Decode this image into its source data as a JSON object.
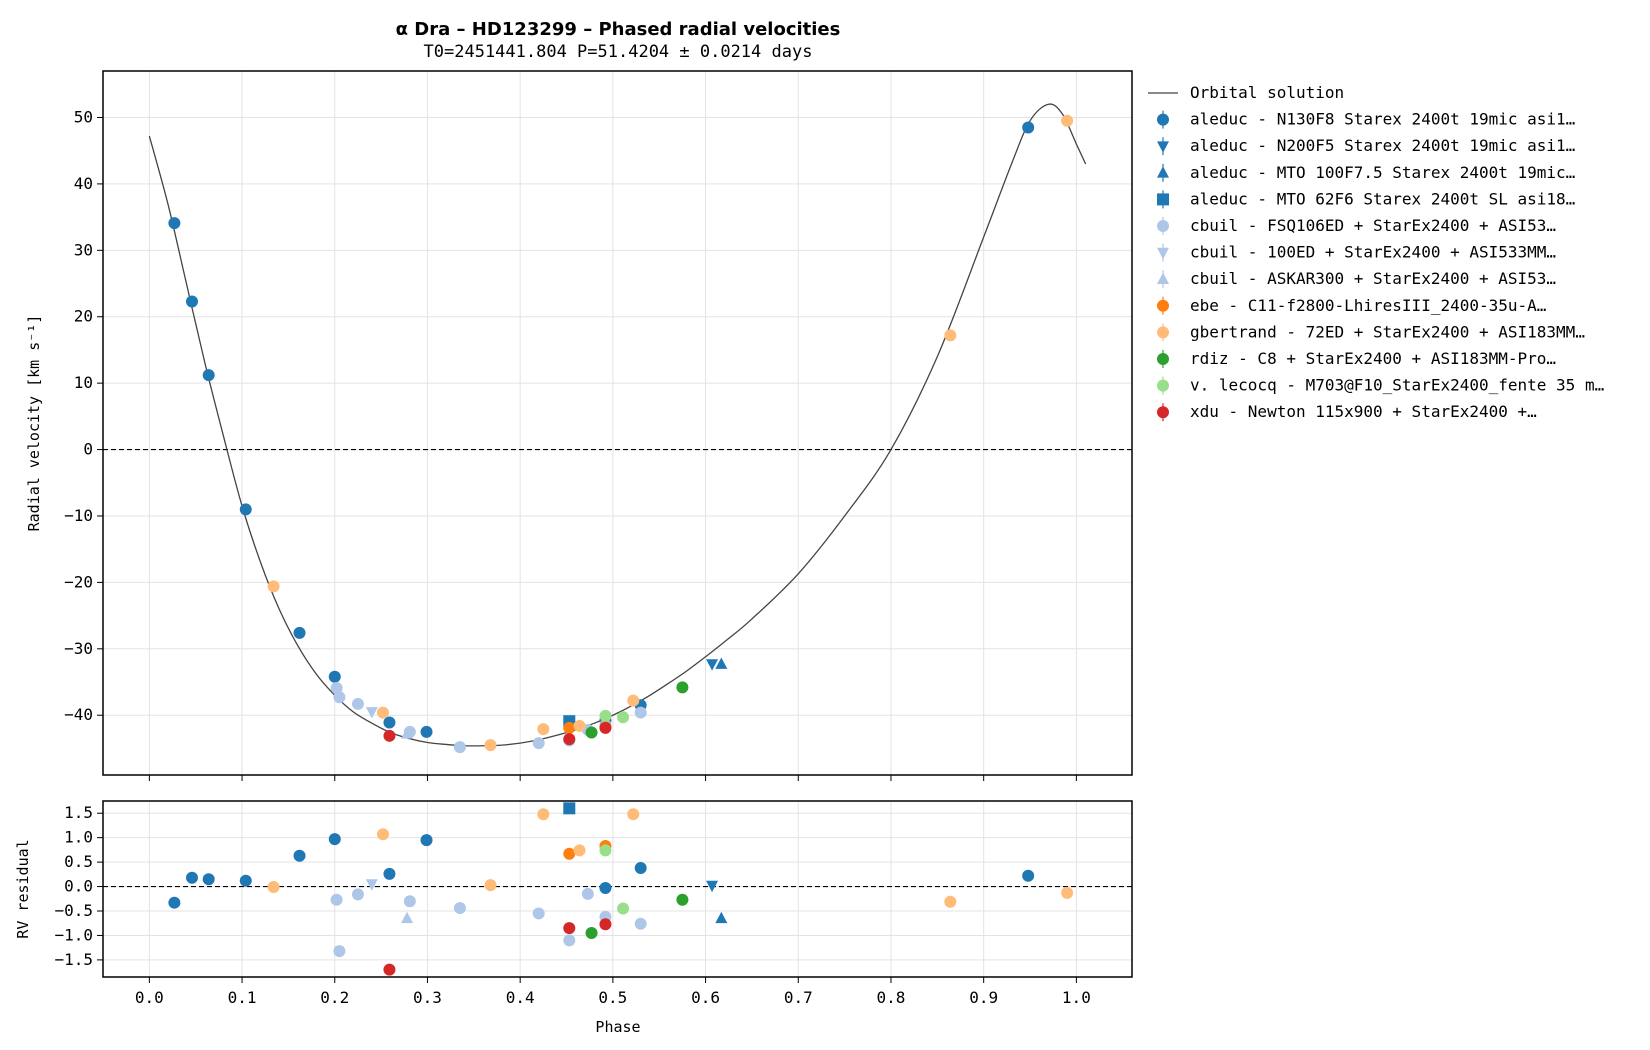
{
  "chart_data": {
    "type": "scatter",
    "title": "α Dra – HD123299 – Phased radial velocities",
    "subtitle": "T0=2451441.804 P=51.4204 ± 0.0214 days",
    "xlabel": "Phase",
    "ylabel": "Radial velocity [km s⁻¹]",
    "ylabel_residual": "RV residual",
    "xlim": [
      -0.05,
      1.06
    ],
    "ylim": [
      -49,
      57
    ],
    "residual_ylim": [
      -1.85,
      1.75
    ],
    "xticks": [
      "0.0",
      "0.1",
      "0.2",
      "0.3",
      "0.4",
      "0.5",
      "0.6",
      "0.7",
      "0.8",
      "0.9",
      "1.0"
    ],
    "yticks": [
      "50",
      "40",
      "30",
      "20",
      "10",
      "0",
      "−10",
      "−20",
      "−30",
      "−40"
    ],
    "residual_yticks": [
      "1.5",
      "1.0",
      "0.5",
      "0.0",
      "−0.5",
      "−1.0",
      "−1.5"
    ],
    "grid": true,
    "legend_position": "outside-right",
    "orbit": {
      "name": "Orbital solution",
      "color": "#444444",
      "x": [
        0.0,
        0.02,
        0.04,
        0.06,
        0.08,
        0.1,
        0.12,
        0.14,
        0.16,
        0.18,
        0.2,
        0.22,
        0.24,
        0.26,
        0.28,
        0.3,
        0.32,
        0.34,
        0.36,
        0.38,
        0.4,
        0.42,
        0.44,
        0.46,
        0.48,
        0.5,
        0.52,
        0.54,
        0.56,
        0.58,
        0.6,
        0.62,
        0.65,
        0.7,
        0.75,
        0.8,
        0.85,
        0.9,
        0.93,
        0.95,
        0.97,
        0.985,
        1.0,
        1.01
      ],
      "y": [
        47.2,
        37.0,
        25.0,
        13.0,
        2.0,
        -8.5,
        -17.0,
        -24.0,
        -29.5,
        -33.8,
        -37.0,
        -39.5,
        -41.2,
        -42.6,
        -43.5,
        -44.1,
        -44.4,
        -44.6,
        -44.6,
        -44.5,
        -44.2,
        -43.7,
        -43.0,
        -42.2,
        -41.2,
        -40.0,
        -38.6,
        -37.0,
        -35.2,
        -33.3,
        -31.2,
        -29.0,
        -25.5,
        -18.7,
        -10.0,
        0.0,
        14.0,
        32.0,
        43.0,
        49.5,
        52.0,
        50.5,
        46.0,
        43.0
      ]
    },
    "series": [
      {
        "name": "aleduc - N130F8 Starex 2400t 19mic asi1…",
        "color": "#1f77b4",
        "marker": "circle",
        "x": [
          0.027,
          0.046,
          0.064,
          0.104,
          0.162,
          0.2,
          0.259,
          0.299,
          0.492,
          0.53,
          0.948
        ],
        "y": [
          34.1,
          22.3,
          11.2,
          -9.0,
          -27.6,
          -34.2,
          -41.1,
          -42.5,
          -40.8,
          -38.5,
          48.5
        ],
        "residual": [
          -0.33,
          0.18,
          0.15,
          0.12,
          0.63,
          0.97,
          0.26,
          0.95,
          -0.03,
          0.38,
          0.22
        ]
      },
      {
        "name": "aleduc - N200F5 Starex 2400t 19mic asi1…",
        "color": "#1f77b4",
        "marker": "triangle-down",
        "x": [
          0.607
        ],
        "y": [
          -32.3
        ],
        "residual": [
          0.02
        ]
      },
      {
        "name": "aleduc - MTO 100F7.5 Starex 2400t 19mic…",
        "color": "#1f77b4",
        "marker": "triangle-up",
        "x": [
          0.617
        ],
        "y": [
          -32.3
        ],
        "residual": [
          -0.65
        ]
      },
      {
        "name": "aleduc - MTO 62F6 Starex 2400t SL asi18…",
        "color": "#1f77b4",
        "marker": "square",
        "x": [
          0.453
        ],
        "y": [
          -40.9
        ],
        "residual": [
          1.6
        ]
      },
      {
        "name": "cbuil - FSQ106ED + StarEx2400  + ASI53…",
        "color": "#aec7e8",
        "marker": "circle",
        "x": [
          0.202,
          0.205,
          0.225,
          0.281,
          0.335,
          0.42,
          0.453,
          0.473,
          0.492,
          0.53
        ],
        "y": [
          -35.9,
          -37.3,
          -38.3,
          -42.5,
          -44.8,
          -44.2,
          -43.8,
          -42.2,
          -41.5,
          -39.6
        ],
        "residual": [
          -0.27,
          -1.32,
          -0.16,
          -0.3,
          -0.44,
          -0.55,
          -1.1,
          -0.15,
          -0.62,
          -0.76
        ]
      },
      {
        "name": "cbuil - 100ED + StarEx2400  + ASI533MM…",
        "color": "#aec7e8",
        "marker": "triangle-down",
        "x": [
          0.24
        ],
        "y": [
          -39.5
        ],
        "residual": [
          0.05
        ]
      },
      {
        "name": "cbuil - ASKAR300 + StarEx2400  + ASI53…",
        "color": "#aec7e8",
        "marker": "triangle-up",
        "x": [
          0.278
        ],
        "y": [
          -42.8
        ],
        "residual": [
          -0.65
        ]
      },
      {
        "name": "ebe - C11-f2800-LhiresIII_2400-35u-A…",
        "color": "#ff7f0e",
        "marker": "circle",
        "x": [
          0.453,
          0.492
        ],
        "y": [
          -41.9,
          -41.8
        ],
        "residual": [
          0.67,
          0.83
        ]
      },
      {
        "name": "gbertrand - 72ED + StarEx2400 + ASI183MM…",
        "color": "#ffbb78",
        "marker": "circle",
        "x": [
          0.134,
          0.252,
          0.368,
          0.425,
          0.464,
          0.522,
          0.864,
          0.99
        ],
        "y": [
          -20.6,
          -39.6,
          -44.5,
          -42.1,
          -41.6,
          -37.8,
          17.2,
          49.5
        ],
        "residual": [
          -0.01,
          1.07,
          0.03,
          1.48,
          0.74,
          1.48,
          -0.31,
          -0.13
        ]
      },
      {
        "name": "rdiz - C8 + StarEx2400 + ASI183MM-Pro…",
        "color": "#2ca02c",
        "marker": "circle",
        "x": [
          0.477,
          0.575
        ],
        "y": [
          -42.6,
          -35.8
        ],
        "residual": [
          -0.95,
          -0.27
        ]
      },
      {
        "name": "v. lecocq - M703@F10_StarEx2400_fente 35 m…",
        "color": "#98df8a",
        "marker": "circle",
        "x": [
          0.492,
          0.511
        ],
        "y": [
          -40.1,
          -40.3
        ],
        "residual": [
          0.74,
          -0.45
        ]
      },
      {
        "name": "xdu - Newton 115x900 + StarEx2400  +…",
        "color": "#d62728",
        "marker": "circle",
        "x": [
          0.259,
          0.453,
          0.492
        ],
        "y": [
          -43.1,
          -43.6,
          -41.9
        ],
        "residual": [
          -1.7,
          -0.85,
          -0.77
        ]
      }
    ]
  }
}
